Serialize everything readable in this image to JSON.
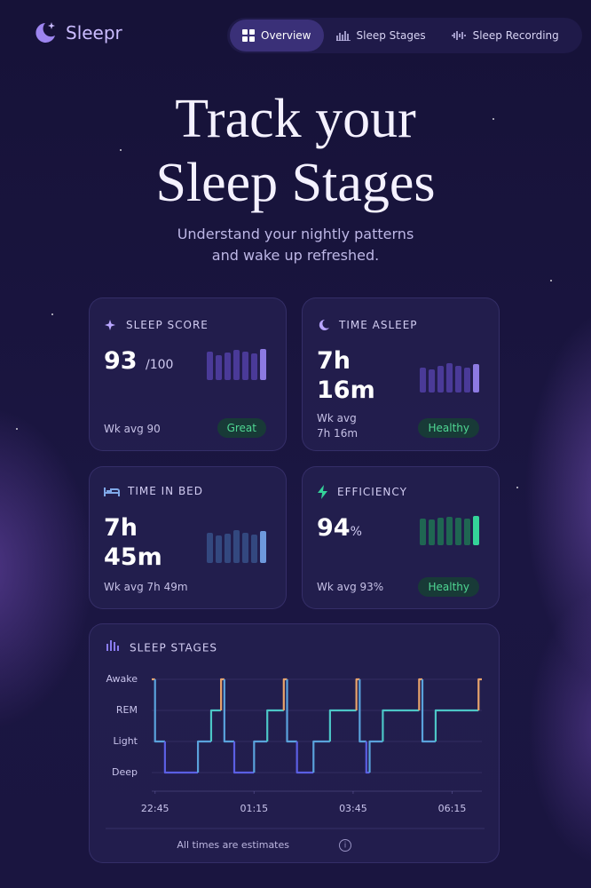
{
  "header": {
    "logo": "Sleepr",
    "nav": [
      "Overview",
      "Sleep Stages",
      "Sleep Recording"
    ]
  },
  "hero": {
    "title": [
      "Track your",
      "Sleep Stages"
    ],
    "subtitle": "Understand your nightly patterns and wake up refreshed."
  },
  "cards": [
    {
      "title": "SLEEP SCORE",
      "value": "93",
      "unit": "/100",
      "wk_avg": "Wk avg 90",
      "badge": "Great"
    },
    {
      "title": "TIME ASLEEP",
      "value": "7h 16m",
      "wk_avg": "Wk avg 7h 16m",
      "badge": "Healthy"
    },
    {
      "title": "TIME IN BED",
      "value": "7h 45m",
      "wk_avg": "Wk avg 7h 49m"
    },
    {
      "title": "EFFICIENCY",
      "value": "94",
      "unit": "%",
      "wk_avg": "Wk avg 93%",
      "badge": "Healthy"
    }
  ],
  "chart_data": {
    "type": "step",
    "title": "SLEEP STAGES",
    "y_categories": [
      "Awake",
      "REM",
      "Light",
      "Deep"
    ],
    "x": [
      "22:40",
      "22:45",
      "23:00",
      "23:50",
      "00:10",
      "00:25",
      "00:30",
      "00:45",
      "01:15",
      "01:35",
      "02:00",
      "02:05",
      "02:20",
      "02:45",
      "03:10",
      "03:50",
      "03:55",
      "04:05",
      "04:10",
      "04:30",
      "05:25",
      "05:30",
      "05:50",
      "06:55"
    ],
    "values": [
      "Awake",
      "Light",
      "Deep",
      "Light",
      "REM",
      "Awake",
      "Light",
      "Deep",
      "Light",
      "REM",
      "Awake",
      "Light",
      "Deep",
      "Light",
      "REM",
      "Awake",
      "Light",
      "Deep",
      "Light",
      "REM",
      "Awake",
      "Light",
      "REM",
      "Awake"
    ],
    "xlim": [
      "22:40",
      "07:00"
    ],
    "xticks": [
      "22:45",
      "01:15",
      "03:45",
      "06:15"
    ],
    "stage_colors": {
      "Awake": "#e8a36c",
      "REM": "#4cc6c6",
      "Light": "#5aa2dc",
      "Deep": "#5b5fe3"
    },
    "grid": true,
    "note": "All times are estimates"
  }
}
